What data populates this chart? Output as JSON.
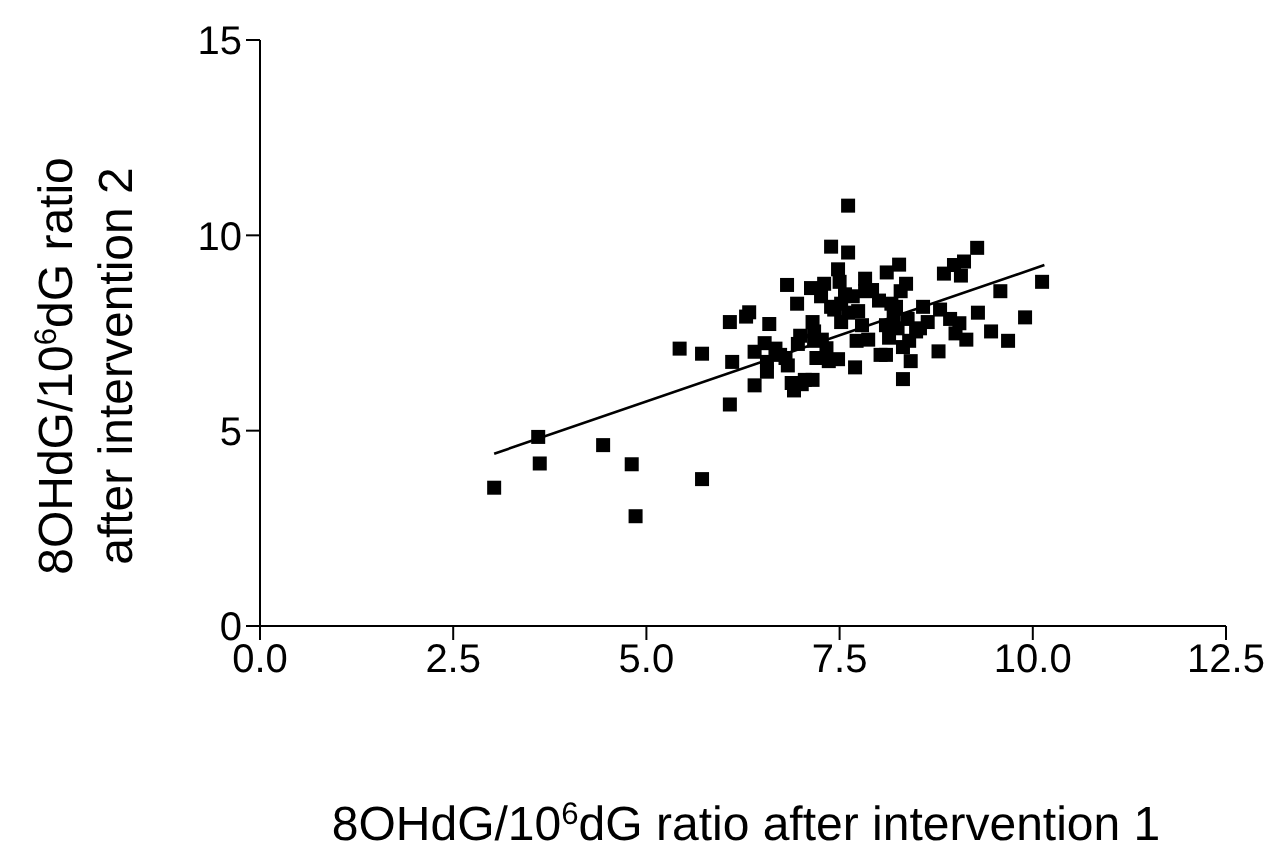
{
  "chart_data": {
    "type": "scatter",
    "xlabel": "8OHdG/10$^{6}$dG ratio after intervention 1",
    "ylabel": "8OHdG/10$^{6}$dG ratio after intervention 2",
    "xlim": [
      0,
      12.5
    ],
    "xticks": [
      {
        "value": 0,
        "label": "0.0"
      },
      2.5,
      {
        "value": 5,
        "label": "5.0"
      },
      7.5,
      {
        "value": 10,
        "label": "10.0"
      },
      12.5
    ],
    "ylim": [
      0,
      15
    ],
    "yticks": [
      0,
      5,
      10,
      15
    ],
    "marker": "square",
    "series": [
      {
        "color": "#000000",
        "x": [
          3.03,
          3.6,
          3.62,
          4.44,
          4.81,
          4.86,
          5.72,
          5.43,
          5.72,
          6.08,
          6.11,
          6.08,
          6.29,
          6.33,
          6.4,
          6.4,
          6.59,
          6.53,
          6.56,
          6.56,
          6.67,
          6.73,
          6.8,
          6.82,
          6.83,
          6.88,
          6.91,
          6.95,
          6.96,
          6.99,
          7.01,
          7.05,
          7.13,
          7.15,
          7.17,
          7.17,
          7.15,
          7.2,
          7.26,
          7.27,
          7.3,
          7.33,
          7.36,
          7.39,
          7.39,
          7.43,
          7.48,
          7.5,
          7.52,
          7.52,
          7.48,
          7.57,
          7.61,
          7.61,
          7.61,
          7.67,
          7.7,
          7.72,
          7.74,
          7.79,
          7.83,
          7.83,
          7.87,
          7.92,
          8.01,
          8.03,
          8.1,
          8.11,
          8.1,
          8.14,
          8.17,
          8.2,
          8.23,
          8.25,
          8.27,
          8.29,
          8.32,
          8.32,
          8.36,
          8.38,
          8.4,
          8.42,
          8.49,
          8.54,
          8.58,
          8.64,
          8.78,
          8.8,
          8.85,
          8.93,
          8.98,
          9.0,
          9.05,
          9.07,
          9.11,
          9.14,
          9.28,
          9.29,
          9.46,
          9.58,
          9.68,
          9.9,
          10.12
        ],
        "values": [
          3.54,
          4.84,
          4.16,
          4.63,
          4.14,
          2.81,
          3.76,
          7.1,
          6.97,
          7.78,
          6.76,
          5.67,
          7.92,
          8.03,
          7.02,
          6.16,
          7.73,
          7.24,
          6.76,
          6.51,
          7.1,
          6.94,
          6.86,
          8.73,
          6.67,
          6.22,
          6.03,
          8.25,
          7.22,
          7.43,
          6.19,
          6.3,
          8.65,
          7.78,
          7.54,
          7.3,
          6.3,
          6.86,
          8.44,
          7.33,
          8.76,
          7.11,
          6.78,
          9.71,
          8.17,
          8.1,
          9.13,
          8.81,
          8.25,
          7.78,
          6.83,
          8.49,
          10.76,
          9.56,
          8.02,
          8.44,
          6.62,
          7.3,
          8.06,
          7.7,
          8.89,
          8.57,
          7.33,
          8.6,
          8.33,
          6.94,
          6.94,
          9.05,
          7.7,
          7.38,
          8.25,
          7.94,
          8.17,
          7.62,
          9.25,
          8.57,
          7.14,
          6.32,
          8.76,
          7.86,
          7.3,
          6.78,
          7.54,
          7.62,
          8.17,
          7.78,
          7.03,
          8.1,
          9.02,
          7.86,
          9.24,
          7.49,
          7.75,
          8.97,
          9.33,
          7.33,
          9.68,
          8.02,
          7.54,
          8.57,
          7.3,
          7.9,
          8.81
        ]
      },
      {
        "type": "line",
        "color": "#000000",
        "line_style": "solid",
        "marker": "none",
        "x": [
          3.03,
          10.15
        ],
        "values": [
          4.41,
          9.24
        ]
      }
    ]
  }
}
